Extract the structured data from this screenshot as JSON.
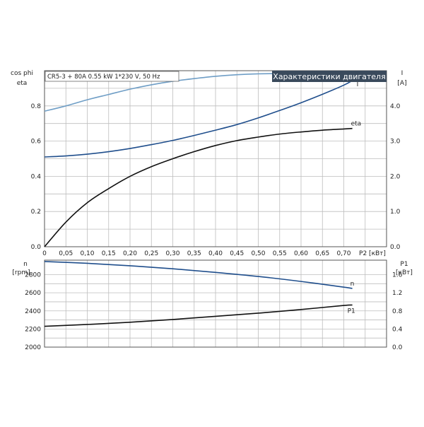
{
  "chart_data": [
    {
      "type": "line",
      "model_label": "CR5-3 + 80A   0.55 kW   1*230 V, 50 Hz",
      "title": "Характеристики двигателя",
      "y_left_label": [
        "cos phi",
        "eta"
      ],
      "y_right_label": [
        "I",
        "[A]"
      ],
      "x_label": "P2 [кВт]",
      "x_ticks": [
        "0",
        "0,05",
        "0,10",
        "0,15",
        "0,20",
        "0,25",
        "0,30",
        "0,35",
        "0,40",
        "0,45",
        "0,50",
        "0,55",
        "0,60",
        "0,65",
        "0,70"
      ],
      "y_left_ticks": [
        "0.0",
        "0.2",
        "0.4",
        "0.6",
        "0.8"
      ],
      "y_right_ticks": [
        "0.0",
        "1.0",
        "2.0",
        "3.0",
        "4.0"
      ],
      "xlim": [
        0,
        0.8
      ],
      "ylim_left": [
        0,
        1.0
      ],
      "ylim_right": [
        0,
        5.0
      ],
      "grid": true,
      "series": [
        {
          "name": "cos phi",
          "axis": "left",
          "color": "#6f9ec6",
          "x": [
            0,
            0.05,
            0.1,
            0.15,
            0.2,
            0.25,
            0.3,
            0.35,
            0.4,
            0.45,
            0.5,
            0.55,
            0.6,
            0.65,
            0.7,
            0.72
          ],
          "y": [
            0.77,
            0.8,
            0.835,
            0.865,
            0.895,
            0.92,
            0.94,
            0.955,
            0.968,
            0.977,
            0.982,
            0.983,
            0.98,
            0.974,
            0.966,
            0.963
          ]
        },
        {
          "name": "I",
          "axis": "right",
          "color": "#1f4e8c",
          "x": [
            0,
            0.05,
            0.1,
            0.15,
            0.2,
            0.25,
            0.3,
            0.35,
            0.4,
            0.45,
            0.5,
            0.55,
            0.6,
            0.65,
            0.7,
            0.72
          ],
          "y": [
            2.55,
            2.58,
            2.63,
            2.7,
            2.79,
            2.9,
            3.02,
            3.16,
            3.31,
            3.47,
            3.66,
            3.87,
            4.09,
            4.33,
            4.59,
            4.72
          ]
        },
        {
          "name": "eta",
          "axis": "left",
          "color": "#111111",
          "x": [
            0,
            0.05,
            0.1,
            0.15,
            0.2,
            0.25,
            0.3,
            0.35,
            0.4,
            0.45,
            0.5,
            0.55,
            0.6,
            0.65,
            0.7,
            0.72
          ],
          "y": [
            0.0,
            0.14,
            0.25,
            0.33,
            0.4,
            0.455,
            0.5,
            0.54,
            0.575,
            0.603,
            0.623,
            0.64,
            0.652,
            0.662,
            0.669,
            0.672
          ]
        }
      ]
    },
    {
      "type": "line",
      "y_left_label": [
        "n",
        "[rpm]"
      ],
      "y_right_label": [
        "P1",
        "[кВт]"
      ],
      "y_left_ticks": [
        "2000",
        "2200",
        "2400",
        "2600",
        "2800"
      ],
      "y_right_ticks": [
        "0.0",
        "0.4",
        "0.8",
        "1.2",
        "1.6"
      ],
      "xlim": [
        0,
        0.8
      ],
      "ylim_left": [
        2000,
        2960
      ],
      "ylim_right": [
        0,
        1.92
      ],
      "grid": true,
      "series": [
        {
          "name": "n",
          "axis": "left",
          "color": "#1f4e8c",
          "x": [
            0,
            0.1,
            0.2,
            0.3,
            0.4,
            0.5,
            0.6,
            0.7,
            0.72
          ],
          "y": [
            2945,
            2925,
            2898,
            2865,
            2825,
            2780,
            2725,
            2662,
            2648
          ]
        },
        {
          "name": "P1",
          "axis": "right",
          "color": "#111111",
          "x": [
            0,
            0.1,
            0.2,
            0.3,
            0.4,
            0.5,
            0.6,
            0.7,
            0.72
          ],
          "y": [
            0.46,
            0.5,
            0.55,
            0.61,
            0.68,
            0.75,
            0.83,
            0.92,
            0.93
          ]
        }
      ]
    }
  ]
}
